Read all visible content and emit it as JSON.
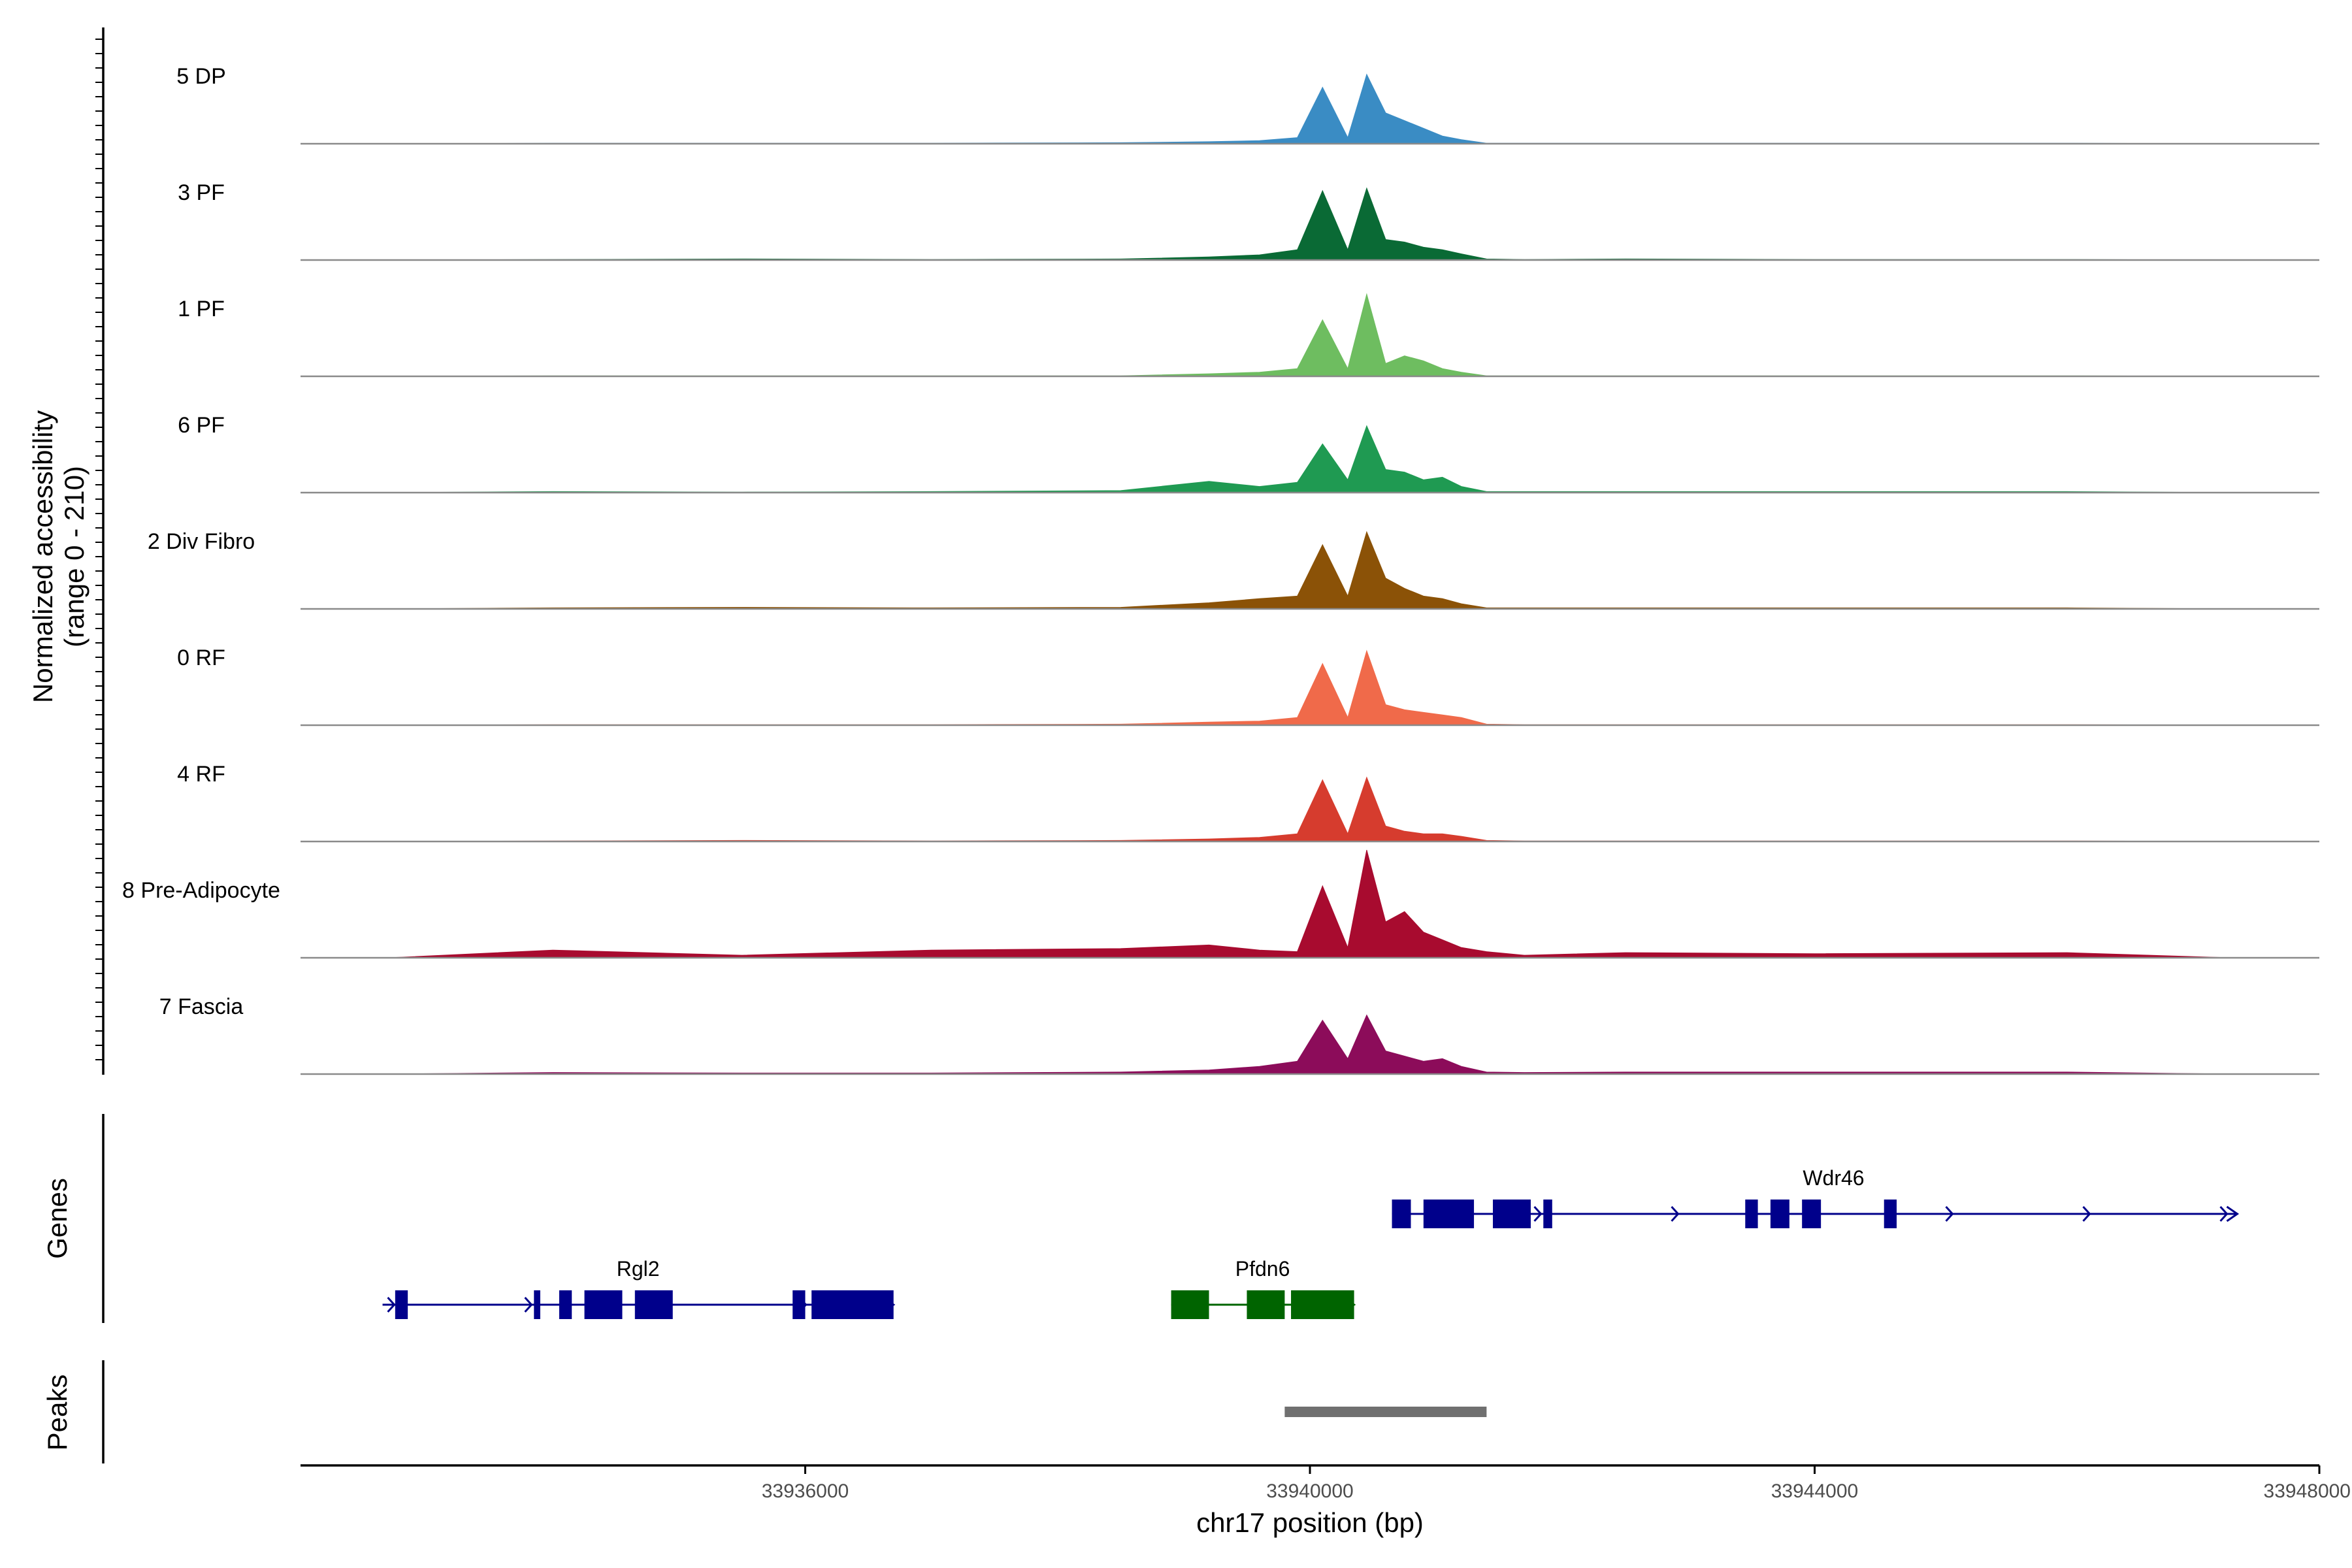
{
  "chart_data": {
    "type": "area",
    "title": "",
    "ylabel": "Normalized accessibility",
    "ylabel_range": "(range 0 - 210)",
    "xlabel": "chr17 position (bp)",
    "xlim": [
      33932000,
      33948000
    ],
    "ylim": [
      0,
      210
    ],
    "x_ticks": [
      {
        "value": 33936000,
        "label": "33936000"
      },
      {
        "value": 33940000,
        "label": "33940000"
      },
      {
        "value": 33944000,
        "label": "33944000"
      },
      {
        "value": 33948000,
        "label": "33948000"
      }
    ],
    "track_positions": [
      33932700,
      33934000,
      33935500,
      33937000,
      33938500,
      33939200,
      33939600,
      33939900,
      33940100,
      33940300,
      33940450,
      33940600,
      33940750,
      33940900,
      33941050,
      33941200,
      33941400,
      33941700,
      33942500,
      33944000,
      33946000,
      33947300
    ],
    "tracks": [
      {
        "name": "5 DP",
        "color": "#3a8cc4",
        "values": [
          0,
          1,
          1,
          1,
          2,
          4,
          6,
          12,
          110,
          12,
          135,
          60,
          45,
          30,
          15,
          8,
          1,
          1,
          1,
          1,
          1,
          0
        ]
      },
      {
        "name": "3 PF",
        "color": "#0a6a35",
        "values": [
          0,
          1,
          2,
          1,
          2,
          6,
          10,
          20,
          135,
          20,
          140,
          40,
          35,
          25,
          20,
          12,
          2,
          1,
          2,
          1,
          1,
          0
        ]
      },
      {
        "name": "1 PF",
        "color": "#6ebd60",
        "values": [
          0,
          1,
          1,
          1,
          1,
          5,
          8,
          15,
          110,
          15,
          160,
          25,
          40,
          30,
          15,
          8,
          1,
          1,
          1,
          1,
          1,
          0
        ]
      },
      {
        "name": "6 PF",
        "color": "#1f9a52",
        "values": [
          0,
          2,
          1,
          2,
          4,
          22,
          12,
          20,
          95,
          25,
          130,
          45,
          40,
          25,
          30,
          12,
          2,
          2,
          2,
          2,
          2,
          0
        ]
      },
      {
        "name": "2 Div Fibro",
        "color": "#8b5207",
        "values": [
          0,
          2,
          3,
          2,
          3,
          12,
          20,
          25,
          125,
          25,
          150,
          60,
          40,
          25,
          20,
          10,
          2,
          2,
          2,
          2,
          2,
          0
        ]
      },
      {
        "name": "0 RF",
        "color": "#f06a4a",
        "values": [
          0,
          1,
          1,
          1,
          2,
          6,
          8,
          15,
          120,
          15,
          145,
          40,
          30,
          25,
          20,
          15,
          2,
          1,
          1,
          1,
          1,
          0
        ]
      },
      {
        "name": "4 RF",
        "color": "#d63c2e",
        "values": [
          0,
          1,
          2,
          1,
          2,
          5,
          8,
          15,
          120,
          15,
          125,
          30,
          20,
          15,
          15,
          10,
          2,
          1,
          1,
          1,
          1,
          0
        ]
      },
      {
        "name": "8 Pre-Adipocyte",
        "color": "#a80b2f",
        "values": [
          0,
          15,
          5,
          15,
          18,
          25,
          15,
          12,
          140,
          20,
          210,
          70,
          90,
          50,
          35,
          20,
          12,
          5,
          10,
          8,
          10,
          0
        ]
      },
      {
        "name": "7 Fascia",
        "color": "#8c0c5a",
        "values": [
          0,
          3,
          2,
          2,
          4,
          8,
          15,
          25,
          105,
          30,
          115,
          45,
          35,
          25,
          30,
          15,
          4,
          3,
          4,
          4,
          4,
          0
        ]
      }
    ],
    "genes_label": "Genes",
    "genes": [
      {
        "name": "Wdr46",
        "color": "#00008b",
        "start": 33940650,
        "end": 33947350,
        "strand": "+",
        "exons": [
          [
            33940650,
            33940800
          ],
          [
            33940900,
            33941300
          ],
          [
            33941450,
            33941750
          ],
          [
            33941850,
            33941920
          ],
          [
            33943450,
            33943550
          ],
          [
            33943650,
            33943800
          ],
          [
            33943900,
            33944050
          ],
          [
            33944550,
            33944650
          ]
        ]
      },
      {
        "name": "Rgl2",
        "color": "#00008b",
        "start": 33932650,
        "end": 33936700,
        "strand": "+",
        "exons": [
          [
            33932750,
            33932850
          ],
          [
            33933850,
            33933900
          ],
          [
            33934050,
            33934150
          ],
          [
            33934250,
            33934550
          ],
          [
            33934650,
            33934950
          ],
          [
            33935900,
            33936000
          ],
          [
            33936050,
            33936700
          ]
        ]
      },
      {
        "name": "Pfdn6",
        "color": "#006400",
        "start": 33938900,
        "end": 33940350,
        "strand": "+",
        "exons": [
          [
            33938900,
            33939200
          ],
          [
            33939500,
            33939800
          ],
          [
            33939850,
            33940350
          ]
        ]
      }
    ],
    "peaks_label": "Peaks",
    "peaks": [
      {
        "start": 33939800,
        "end": 33941400,
        "color": "#707070"
      }
    ]
  }
}
